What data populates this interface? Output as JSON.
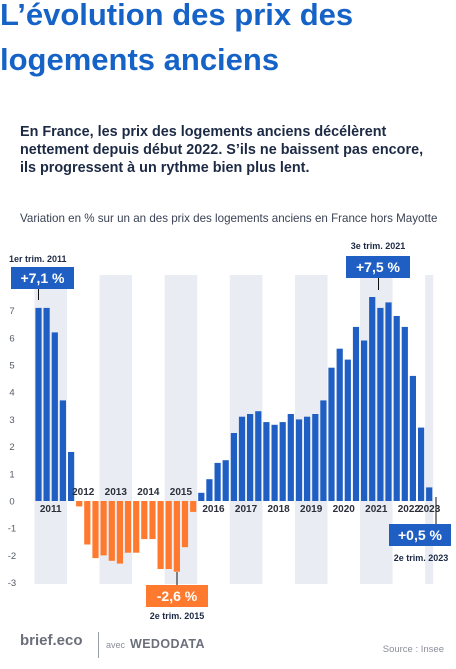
{
  "page": {
    "title_line1": "L’évolution des prix des",
    "title_line2": "logements anciens",
    "subtitle": "En France, les prix des logements anciens décélèrent nettement depuis début 2022. S’ils ne baissent pas encore, ils progressent à un rythme bien plus lent.",
    "note": "Variation en % sur un an des prix des logements anciens en France hors Mayotte",
    "footer_logo": "brief.eco",
    "footer_avec": "avec",
    "footer_partner": "WEDODATA",
    "source": "Source : Insee"
  },
  "chart_data": {
    "type": "bar",
    "title": "",
    "xlabel": "",
    "ylabel": "",
    "ylim": [
      -3,
      7.5
    ],
    "yticks": [
      7,
      6,
      5,
      4,
      3,
      2,
      1,
      0,
      -1,
      -2,
      -3
    ],
    "years": [
      "2011",
      "2012",
      "2013",
      "2014",
      "2015",
      "2016",
      "2017",
      "2018",
      "2019",
      "2020",
      "2021",
      "2022",
      "2023"
    ],
    "values": [
      7.1,
      7.1,
      6.2,
      3.7,
      1.8,
      -0.2,
      -1.6,
      -2.1,
      -2.0,
      -2.2,
      -2.3,
      -1.9,
      -1.9,
      -1.4,
      -1.4,
      -2.5,
      -2.5,
      -2.6,
      -1.7,
      -0.4,
      0.3,
      0.8,
      1.4,
      1.5,
      2.5,
      3.1,
      3.2,
      3.3,
      2.9,
      2.8,
      2.9,
      3.2,
      3.0,
      3.1,
      3.2,
      3.7,
      4.9,
      5.6,
      5.2,
      6.4,
      5.9,
      7.5,
      7.1,
      7.3,
      6.8,
      6.4,
      4.6,
      2.7,
      0.5
    ],
    "positive_color": "#1f5fc4",
    "negative_color": "#ff7a2e",
    "band_color": "#e9edf3",
    "annotations": [
      {
        "label": "1er trim. 2011",
        "value_label": "+7,1 %"
      },
      {
        "label": "3e trim. 2021",
        "value_label": "+7,5 %"
      },
      {
        "label": "2e trim. 2015",
        "value_label": "-2,6 %"
      },
      {
        "label": "2e trim. 2023",
        "value_label": "+0,5 %"
      }
    ]
  }
}
